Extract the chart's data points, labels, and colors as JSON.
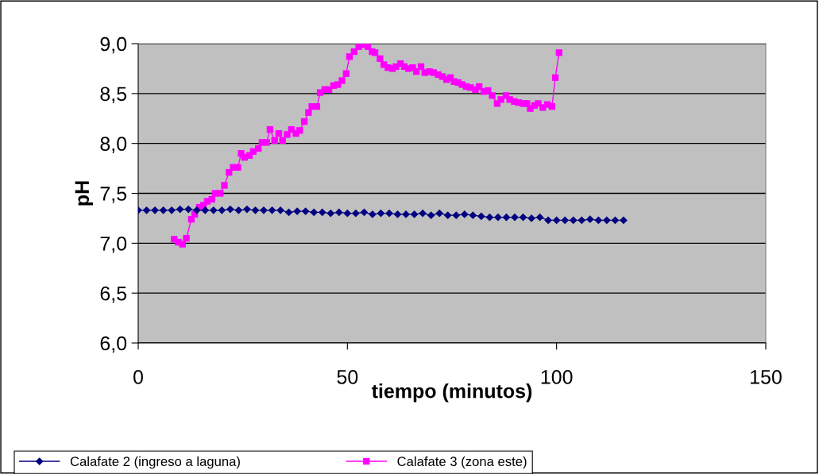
{
  "chart_data": {
    "type": "line",
    "xlabel": "tiempo (minutos)",
    "ylabel": "pH",
    "xlim": [
      0,
      150
    ],
    "xticks": [
      0,
      50,
      100,
      150
    ],
    "ylim": [
      6.0,
      9.0
    ],
    "yticks": [
      {
        "value": 6.0,
        "label": "6,0"
      },
      {
        "value": 6.5,
        "label": "6,5"
      },
      {
        "value": 7.0,
        "label": "7,0"
      },
      {
        "value": 7.5,
        "label": "7,5"
      },
      {
        "value": 8.0,
        "label": "8,0"
      },
      {
        "value": 8.5,
        "label": "8,5"
      },
      {
        "value": 9.0,
        "label": "9,0"
      }
    ],
    "grid": "y",
    "legend": "bottom",
    "line_style": "solid",
    "series": [
      {
        "name": "Calafate 2 (ingreso a laguna)",
        "color": "#000080",
        "marker": "diamond",
        "x": [
          0,
          2,
          4,
          6,
          8,
          10,
          12,
          14,
          16,
          18,
          20,
          22,
          24,
          26,
          28,
          30,
          32,
          34,
          36,
          38,
          40,
          42,
          44,
          46,
          48,
          50,
          52,
          54,
          56,
          58,
          60,
          62,
          64,
          66,
          68,
          70,
          72,
          74,
          76,
          78,
          80,
          82,
          84,
          86,
          88,
          90,
          92,
          94,
          96,
          98,
          100,
          102,
          104,
          106,
          108,
          110,
          112,
          114,
          116
        ],
        "values": [
          7.33,
          7.33,
          7.33,
          7.33,
          7.33,
          7.34,
          7.34,
          7.33,
          7.33,
          7.33,
          7.33,
          7.34,
          7.33,
          7.34,
          7.33,
          7.33,
          7.33,
          7.33,
          7.31,
          7.32,
          7.32,
          7.31,
          7.31,
          7.3,
          7.31,
          7.3,
          7.3,
          7.31,
          7.29,
          7.3,
          7.3,
          7.29,
          7.29,
          7.29,
          7.3,
          7.28,
          7.3,
          7.28,
          7.28,
          7.29,
          7.28,
          7.27,
          7.26,
          7.26,
          7.26,
          7.26,
          7.26,
          7.25,
          7.26,
          7.23,
          7.23,
          7.23,
          7.23,
          7.23,
          7.24,
          7.23,
          7.23,
          7.23,
          7.23
        ]
      },
      {
        "name": "Calafate 3 (zona este)",
        "color": "#ff00ff",
        "marker": "square",
        "x": [
          8.6,
          9.6,
          10.6,
          11.5,
          12.7,
          13.5,
          14.6,
          15.6,
          16.5,
          17.6,
          18.4,
          19.6,
          20.6,
          21.7,
          22.7,
          23.8,
          24.6,
          25.4,
          26.6,
          27.5,
          28.7,
          29.6,
          30.7,
          31.5,
          32.6,
          33.6,
          34.5,
          35.6,
          36.6,
          37.7,
          38.6,
          39.7,
          40.7,
          41.5,
          42.7,
          43.5,
          44.6,
          45.6,
          46.7,
          47.7,
          48.7,
          49.7,
          50.5,
          51.6,
          52.7,
          53.8,
          54.9,
          55.9,
          56.6,
          57.8,
          58.7,
          59.7,
          60.8,
          61.6,
          62.7,
          63.6,
          64.6,
          65.6,
          66.5,
          67.6,
          68.5,
          69.6,
          70.6,
          71.7,
          72.7,
          73.7,
          74.6,
          75.5,
          76.5,
          77.4,
          78.4,
          79.4,
          80.6,
          81.5,
          82.6,
          83.6,
          84.6,
          85.8,
          86.7,
          87.9,
          88.8,
          89.9,
          90.9,
          92.0,
          92.9,
          93.7,
          94.7,
          95.6,
          96.7,
          97.8,
          98.9,
          99.7,
          100.6
        ],
        "values": [
          7.04,
          7.01,
          6.99,
          7.05,
          7.24,
          7.29,
          7.36,
          7.38,
          7.42,
          7.44,
          7.5,
          7.5,
          7.58,
          7.71,
          7.76,
          7.76,
          7.9,
          7.86,
          7.88,
          7.92,
          7.95,
          8.01,
          8.01,
          8.14,
          8.03,
          8.1,
          8.03,
          8.09,
          8.14,
          8.1,
          8.13,
          8.22,
          8.31,
          8.37,
          8.37,
          8.51,
          8.54,
          8.54,
          8.58,
          8.59,
          8.63,
          8.7,
          8.87,
          8.92,
          8.97,
          8.99,
          8.97,
          8.92,
          8.91,
          8.85,
          8.79,
          8.76,
          8.75,
          8.77,
          8.8,
          8.77,
          8.75,
          8.76,
          8.72,
          8.77,
          8.71,
          8.72,
          8.71,
          8.69,
          8.67,
          8.64,
          8.66,
          8.62,
          8.61,
          8.59,
          8.57,
          8.56,
          8.54,
          8.57,
          8.52,
          8.53,
          8.48,
          8.4,
          8.44,
          8.48,
          8.44,
          8.42,
          8.41,
          8.4,
          8.4,
          8.35,
          8.38,
          8.4,
          8.36,
          8.39,
          8.37,
          8.66,
          8.91
        ]
      }
    ]
  }
}
